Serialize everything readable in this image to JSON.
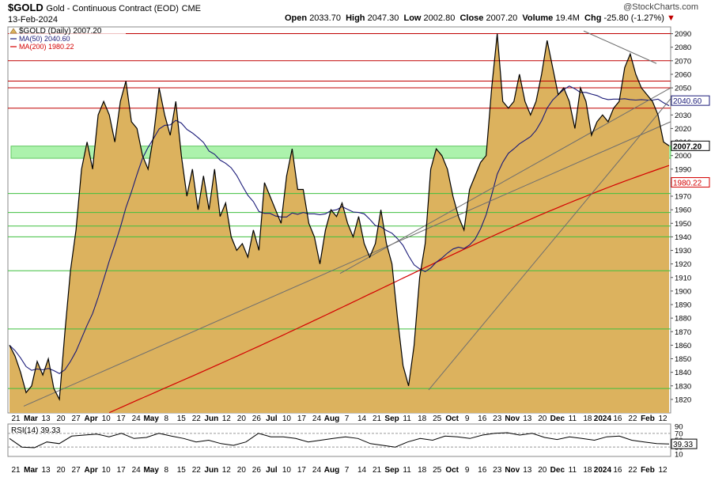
{
  "header": {
    "symbol": "$GOLD",
    "name": "Gold - Continuous Contract (EOD)",
    "exchange": "CME",
    "date": "13-Feb-2024",
    "brand": "@StockCharts.com",
    "open_label": "Open",
    "open": "2033.70",
    "high_label": "High",
    "high": "2047.30",
    "low_label": "Low",
    "low": "2002.80",
    "close_label": "Close",
    "close": "2007.20",
    "volume_label": "Volume",
    "volume": "19.4M",
    "chg_label": "Chg",
    "chg": "-25.80 (-1.27%)",
    "chg_arrow": "▼"
  },
  "legend": {
    "price": "$GOLD (Daily) 2007.20",
    "ma50": "MA(50) 2040.60",
    "ma200": "MA(200) 1980.22"
  },
  "rsi_panel": {
    "label": "RSI(14) 39.33",
    "value_tag": "39.33",
    "ticks": [
      "90",
      "70",
      "50",
      "30",
      "10"
    ],
    "values": [
      55,
      30,
      28,
      45,
      40,
      62,
      65,
      68,
      60,
      70,
      55,
      58,
      70,
      62,
      55,
      45,
      50,
      40,
      35,
      45,
      70,
      60,
      60,
      55,
      45,
      50,
      55,
      60,
      55,
      40,
      35,
      30,
      45,
      55,
      50,
      62,
      60,
      55,
      65,
      70,
      72,
      65,
      70,
      58,
      52,
      60,
      55,
      50,
      60,
      62,
      50,
      45,
      40,
      39
    ]
  },
  "colors": {
    "area_fill": "#dcb25e",
    "price_line": "#000000",
    "ma50": "#1a1a78",
    "ma200": "#d40000",
    "support_band": "#90ee90",
    "red_lines": "#c00000",
    "green_lines": "#3fbf3f",
    "trendlines": "#6e6e6e"
  },
  "chart_data": {
    "type": "area",
    "title": "$GOLD Gold - Continuous Contract (EOD) CME",
    "y_axis": {
      "min": 1810,
      "max": 2095,
      "ticks": [
        1820,
        1830,
        1840,
        1850,
        1860,
        1870,
        1880,
        1890,
        1900,
        1910,
        1920,
        1930,
        1940,
        1950,
        1960,
        1970,
        1980,
        1990,
        2000,
        2010,
        2020,
        2030,
        2040,
        2050,
        2060,
        2070,
        2080,
        2090
      ]
    },
    "x_tick_labels": [
      "21",
      "Mar",
      "13",
      "20",
      "27",
      "Apr",
      "10",
      "17",
      "24",
      "May",
      "8",
      "15",
      "22",
      "Jun",
      "12",
      "20",
      "26",
      "Jul",
      "10",
      "17",
      "24",
      "Aug",
      "7",
      "14",
      "21",
      "Sep",
      "11",
      "18",
      "25",
      "Oct",
      "9",
      "16",
      "23",
      "Nov",
      "13",
      "20",
      "Dec",
      "11",
      "18",
      "2024",
      "16",
      "22",
      "Feb",
      "12"
    ],
    "ma_labels": {
      "ma50": "2040.60",
      "ma200": "1980.22",
      "price": "2007.20"
    },
    "support_band": {
      "from": 1998,
      "to": 2007
    },
    "red_levels": [
      2090,
      2070,
      2055,
      2050,
      2035
    ],
    "green_levels": [
      1972,
      1958,
      1948,
      1940,
      1915,
      1872,
      1828
    ],
    "series": [
      {
        "name": "$GOLD (Daily)",
        "values": [
          1860,
          1852,
          1840,
          1825,
          1830,
          1848,
          1838,
          1850,
          1828,
          1820,
          1870,
          1915,
          1945,
          1990,
          2010,
          1990,
          2030,
          2040,
          2030,
          2010,
          2040,
          2055,
          2025,
          2020,
          2000,
          1990,
          2015,
          2050,
          2030,
          2015,
          2040,
          2000,
          1970,
          1990,
          1960,
          1985,
          1960,
          1990,
          1955,
          1965,
          1940,
          1930,
          1935,
          1925,
          1945,
          1930,
          1980,
          1970,
          1960,
          1950,
          1985,
          2005,
          1975,
          1975,
          1950,
          1940,
          1920,
          1945,
          1960,
          1955,
          1965,
          1950,
          1940,
          1955,
          1935,
          1925,
          1935,
          1960,
          1935,
          1920,
          1880,
          1845,
          1830,
          1860,
          1910,
          1935,
          1990,
          2005,
          2000,
          1990,
          1970,
          1955,
          1945,
          1975,
          1985,
          1995,
          2000,
          2050,
          2090,
          2040,
          2035,
          2040,
          2060,
          2040,
          2030,
          2040,
          2060,
          2085,
          2065,
          2045,
          2050,
          2040,
          2020,
          2050,
          2040,
          2015,
          2025,
          2030,
          2025,
          2035,
          2040,
          2065,
          2075,
          2060,
          2050,
          2045,
          2040,
          2030,
          2010,
          2007.2
        ]
      },
      {
        "name": "MA(50)",
        "values": []
      },
      {
        "name": "MA(200)",
        "values": []
      }
    ]
  }
}
